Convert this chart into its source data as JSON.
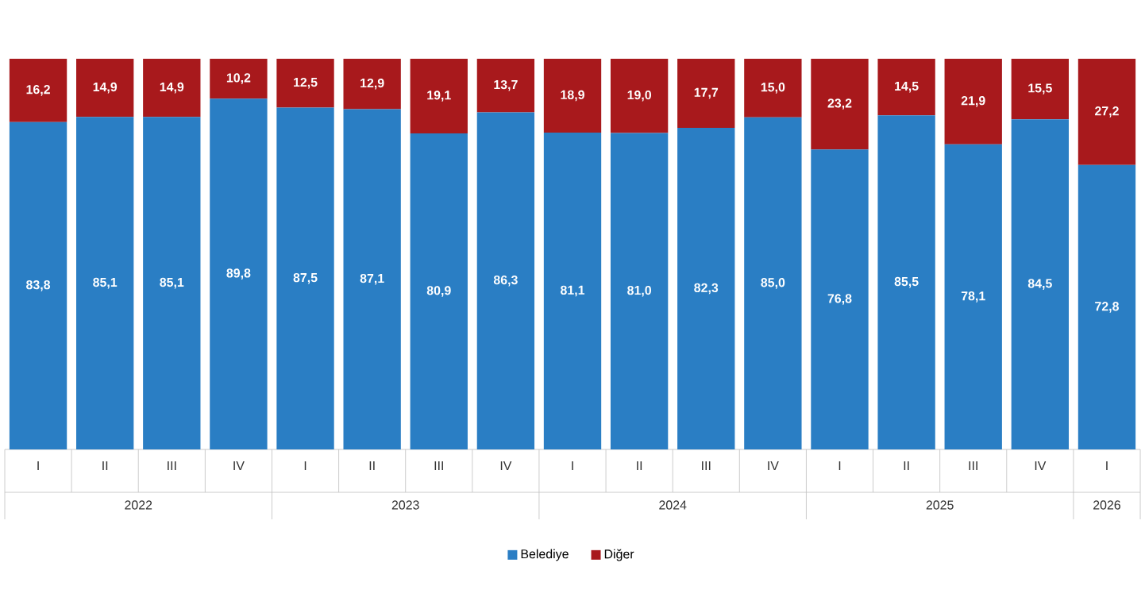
{
  "chart_data": {
    "type": "bar",
    "stacked": true,
    "legend": "bottom",
    "grid": false,
    "categories": [
      "I",
      "II",
      "III",
      "IV",
      "I",
      "II",
      "III",
      "IV",
      "I",
      "II",
      "III",
      "IV",
      "I",
      "II",
      "III",
      "IV",
      "I"
    ],
    "annotations": [
      "2022",
      "2023",
      "2024",
      "2025",
      "2026"
    ],
    "series": [
      {
        "name": "Belediye",
        "color": "#2a7ec4",
        "values": [
          83.8,
          85.1,
          85.1,
          89.8,
          87.5,
          87.1,
          80.9,
          86.3,
          81.1,
          81.0,
          82.3,
          85.0,
          76.8,
          85.5,
          78.1,
          84.5,
          72.8
        ],
        "value_labels": [
          "83,8",
          "85,1",
          "85,1",
          "89,8",
          "87,5",
          "87,1",
          "80,9",
          "86,3",
          "81,1",
          "81,0",
          "82,3",
          "85,0",
          "76,8",
          "85,5",
          "78,1",
          "84,5",
          "72,8"
        ]
      },
      {
        "name": "Diğer",
        "color": "#a8191c",
        "values": [
          16.2,
          14.9,
          14.9,
          10.2,
          12.5,
          12.9,
          19.1,
          13.7,
          18.9,
          19.0,
          17.7,
          15.0,
          23.2,
          14.5,
          21.9,
          15.5,
          27.2
        ],
        "value_labels": [
          "16,2",
          "14,9",
          "14,9",
          "10,2",
          "12,5",
          "12,9",
          "19,1",
          "13,7",
          "18,9",
          "19,0",
          "17,7",
          "15,0",
          "23,2",
          "14,5",
          "21,9",
          "15,5",
          "27,2"
        ]
      }
    ]
  }
}
